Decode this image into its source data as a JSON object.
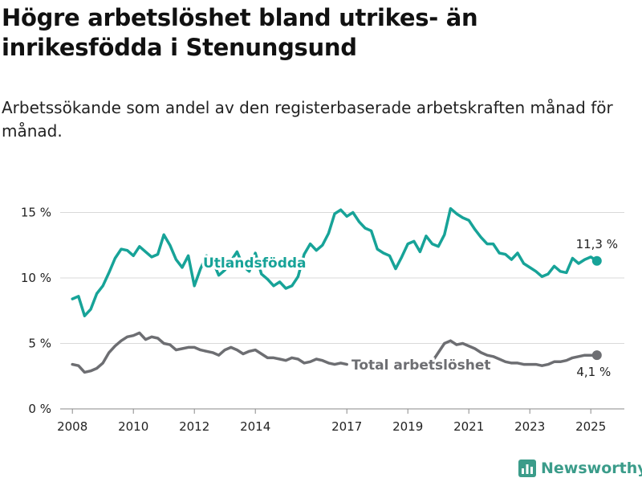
{
  "title": "Högre arbetslöshet bland utrikes- än inrikesfödda i Stenungsund",
  "subtitle": "Arbetssökande som andel av den registerbaserade arbetskraften månad för månad.",
  "brand": {
    "name": "Newsworthy",
    "color": "#3b9c8a",
    "icon": "bar-chart-logo-icon"
  },
  "chart_data": {
    "type": "line",
    "title": "Högre arbetslöshet bland utrikes- än inrikesfödda i Stenungsund",
    "subtitle": "Arbetssökande som andel av den registerbaserade arbetskraften månad för månad.",
    "xlabel": "",
    "ylabel": "",
    "ylim": [
      0,
      16.5
    ],
    "xlim": [
      2007.6,
      2026.1
    ],
    "grid": "horizontal",
    "y_ticks": [
      0,
      5,
      10,
      15
    ],
    "y_tick_labels": [
      "0 %",
      "5 %",
      "10 %",
      "15 %"
    ],
    "x_ticks": [
      2008,
      2010,
      2012,
      2014,
      2017,
      2019,
      2021,
      2023,
      2025
    ],
    "x_tick_labels": [
      "2008",
      "2010",
      "2012",
      "2014",
      "2017",
      "2019",
      "2021",
      "2023",
      "2025"
    ],
    "series": [
      {
        "name": "Utlandsfödda",
        "color": "#17a398",
        "end_label": "11,3 %",
        "points": [
          [
            2008.0,
            8.4
          ],
          [
            2008.2,
            8.6
          ],
          [
            2008.4,
            7.1
          ],
          [
            2008.6,
            7.6
          ],
          [
            2008.8,
            8.8
          ],
          [
            2009.0,
            9.4
          ],
          [
            2009.2,
            10.4
          ],
          [
            2009.4,
            11.5
          ],
          [
            2009.6,
            12.2
          ],
          [
            2009.8,
            12.1
          ],
          [
            2010.0,
            11.7
          ],
          [
            2010.2,
            12.4
          ],
          [
            2010.4,
            12.0
          ],
          [
            2010.6,
            11.6
          ],
          [
            2010.8,
            11.8
          ],
          [
            2011.0,
            13.3
          ],
          [
            2011.2,
            12.5
          ],
          [
            2011.4,
            11.4
          ],
          [
            2011.6,
            10.8
          ],
          [
            2011.8,
            11.7
          ],
          [
            2012.0,
            9.4
          ],
          [
            2012.2,
            10.7
          ],
          [
            2012.4,
            11.7
          ],
          [
            2012.6,
            11.3
          ],
          [
            2012.8,
            10.2
          ],
          [
            2013.0,
            10.6
          ],
          [
            2013.2,
            11.3
          ],
          [
            2013.4,
            12.0
          ],
          [
            2013.6,
            10.9
          ],
          [
            2013.8,
            10.5
          ],
          [
            2014.0,
            11.9
          ],
          [
            2014.2,
            10.3
          ],
          [
            2014.4,
            9.9
          ],
          [
            2014.6,
            9.4
          ],
          [
            2014.8,
            9.7
          ],
          [
            2015.0,
            9.2
          ],
          [
            2015.2,
            9.4
          ],
          [
            2015.4,
            10.1
          ],
          [
            2015.6,
            11.8
          ],
          [
            2015.8,
            12.6
          ],
          [
            2016.0,
            12.1
          ],
          [
            2016.2,
            12.5
          ],
          [
            2016.4,
            13.4
          ],
          [
            2016.6,
            14.9
          ],
          [
            2016.8,
            15.2
          ],
          [
            2017.0,
            14.7
          ],
          [
            2017.2,
            15.0
          ],
          [
            2017.4,
            14.3
          ],
          [
            2017.6,
            13.8
          ],
          [
            2017.8,
            13.6
          ],
          [
            2018.0,
            12.2
          ],
          [
            2018.2,
            11.9
          ],
          [
            2018.4,
            11.7
          ],
          [
            2018.6,
            10.7
          ],
          [
            2018.8,
            11.6
          ],
          [
            2019.0,
            12.6
          ],
          [
            2019.2,
            12.8
          ],
          [
            2019.4,
            12.0
          ],
          [
            2019.6,
            13.2
          ],
          [
            2019.8,
            12.6
          ],
          [
            2020.0,
            12.4
          ],
          [
            2020.2,
            13.3
          ],
          [
            2020.4,
            15.3
          ],
          [
            2020.6,
            14.9
          ],
          [
            2020.8,
            14.6
          ],
          [
            2021.0,
            14.4
          ],
          [
            2021.2,
            13.7
          ],
          [
            2021.4,
            13.1
          ],
          [
            2021.6,
            12.6
          ],
          [
            2021.8,
            12.6
          ],
          [
            2022.0,
            11.9
          ],
          [
            2022.2,
            11.8
          ],
          [
            2022.4,
            11.4
          ],
          [
            2022.6,
            11.9
          ],
          [
            2022.8,
            11.1
          ],
          [
            2023.0,
            10.8
          ],
          [
            2023.2,
            10.5
          ],
          [
            2023.4,
            10.1
          ],
          [
            2023.6,
            10.3
          ],
          [
            2023.8,
            10.9
          ],
          [
            2024.0,
            10.5
          ],
          [
            2024.2,
            10.4
          ],
          [
            2024.4,
            11.5
          ],
          [
            2024.6,
            11.1
          ],
          [
            2024.8,
            11.4
          ],
          [
            2025.0,
            11.6
          ],
          [
            2025.2,
            11.3
          ]
        ]
      },
      {
        "name": "Total arbetslöshet",
        "color": "#6d6e72",
        "end_label": "4,1 %",
        "points": [
          [
            2008.0,
            3.4
          ],
          [
            2008.2,
            3.3
          ],
          [
            2008.4,
            2.8
          ],
          [
            2008.6,
            2.9
          ],
          [
            2008.8,
            3.1
          ],
          [
            2009.0,
            3.5
          ],
          [
            2009.2,
            4.3
          ],
          [
            2009.4,
            4.8
          ],
          [
            2009.6,
            5.2
          ],
          [
            2009.8,
            5.5
          ],
          [
            2010.0,
            5.6
          ],
          [
            2010.2,
            5.8
          ],
          [
            2010.4,
            5.3
          ],
          [
            2010.6,
            5.5
          ],
          [
            2010.8,
            5.4
          ],
          [
            2011.0,
            5.0
          ],
          [
            2011.2,
            4.9
          ],
          [
            2011.4,
            4.5
          ],
          [
            2011.6,
            4.6
          ],
          [
            2011.8,
            4.7
          ],
          [
            2012.0,
            4.7
          ],
          [
            2012.2,
            4.5
          ],
          [
            2012.4,
            4.4
          ],
          [
            2012.6,
            4.3
          ],
          [
            2012.8,
            4.1
          ],
          [
            2013.0,
            4.5
          ],
          [
            2013.2,
            4.7
          ],
          [
            2013.4,
            4.5
          ],
          [
            2013.6,
            4.2
          ],
          [
            2013.8,
            4.4
          ],
          [
            2014.0,
            4.5
          ],
          [
            2014.2,
            4.2
          ],
          [
            2014.4,
            3.9
          ],
          [
            2014.6,
            3.9
          ],
          [
            2014.8,
            3.8
          ],
          [
            2015.0,
            3.7
          ],
          [
            2015.2,
            3.9
          ],
          [
            2015.4,
            3.8
          ],
          [
            2015.6,
            3.5
          ],
          [
            2015.8,
            3.6
          ],
          [
            2016.0,
            3.8
          ],
          [
            2016.2,
            3.7
          ],
          [
            2016.4,
            3.5
          ],
          [
            2016.6,
            3.4
          ],
          [
            2016.8,
            3.5
          ],
          [
            2017.0,
            3.4
          ],
          [
            2019.8,
            3.6
          ],
          [
            2020.0,
            4.3
          ],
          [
            2020.2,
            5.0
          ],
          [
            2020.4,
            5.2
          ],
          [
            2020.6,
            4.9
          ],
          [
            2020.8,
            5.0
          ],
          [
            2021.0,
            4.8
          ],
          [
            2021.2,
            4.6
          ],
          [
            2021.4,
            4.3
          ],
          [
            2021.6,
            4.1
          ],
          [
            2021.8,
            4.0
          ],
          [
            2022.0,
            3.8
          ],
          [
            2022.2,
            3.6
          ],
          [
            2022.4,
            3.5
          ],
          [
            2022.6,
            3.5
          ],
          [
            2022.8,
            3.4
          ],
          [
            2023.0,
            3.4
          ],
          [
            2023.2,
            3.4
          ],
          [
            2023.4,
            3.3
          ],
          [
            2023.6,
            3.4
          ],
          [
            2023.8,
            3.6
          ],
          [
            2024.0,
            3.6
          ],
          [
            2024.2,
            3.7
          ],
          [
            2024.4,
            3.9
          ],
          [
            2024.6,
            4.0
          ],
          [
            2024.8,
            4.1
          ],
          [
            2025.0,
            4.1
          ],
          [
            2025.2,
            4.1
          ]
        ]
      }
    ]
  }
}
